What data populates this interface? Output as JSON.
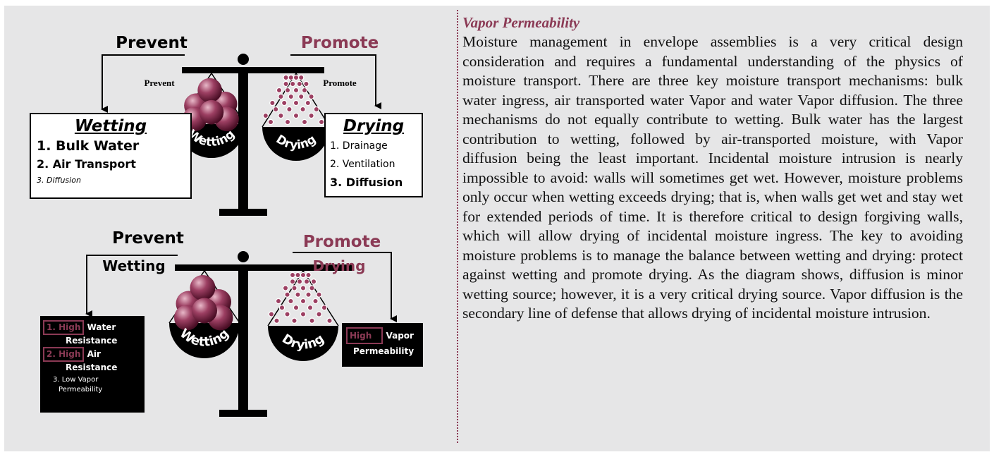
{
  "diagram": {
    "top": {
      "left_label": "Prevent",
      "right_label": "Promote",
      "pan_left_small": "Prevent",
      "pan_right_small": "Promote",
      "left_pan": "Wetting",
      "right_pan": "Drying",
      "left_box": {
        "title": "Wetting",
        "items": [
          "1. Bulk Water",
          "2. Air Transport",
          "3. Diffusion"
        ]
      },
      "right_box": {
        "title": "Drying",
        "items": [
          "1. Drainage",
          "2. Ventilation",
          "3. Diffusion"
        ]
      }
    },
    "bottom": {
      "left_label": "Prevent",
      "left_sub": "Wetting",
      "right_label": "Promote",
      "right_sub": "Drying",
      "left_pan": "Wetting",
      "right_pan": "Drying",
      "left_box": [
        {
          "tag": "1. High",
          "text": "Water",
          "text2": "Resistance"
        },
        {
          "tag": "2. High",
          "text": "Air",
          "text2": "Resistance"
        },
        {
          "text": "3. Low Vapor",
          "text2": "Permeability"
        }
      ],
      "right_box": {
        "tag": "High",
        "text": "Vapor",
        "text2": "Permeability"
      }
    }
  },
  "article": {
    "title": "Vapor Permeability",
    "body": "Moisture management in envelope assemblies is a very critical design consideration and requires a fundamental understanding of the physics of moisture transport. There are three key moisture transport mechanisms: bulk water ingress, air transported water Vapor and water Vapor diffusion. The three mechanisms do not equally contribute to wetting. Bulk water has the largest contribution to wetting, followed by air-transported moisture, with Vapor diffusion being the least important. Incidental moisture intrusion is nearly impossible to avoid: walls will sometimes get wet. However, moisture problems only occur when wetting exceeds drying; that is, when walls get wet and stay wet for extended periods of time. It is therefore critical to design forgiving walls, which will allow drying of incidental moisture ingress. The key to avoiding moisture problems is to manage the balance between wetting and drying: protect against wetting and promote drying. As the diagram shows, diffusion is minor wetting source; however, it is a very critical drying source. Vapor diffusion is the secondary line of defense that allows drying of incidental moisture intrusion."
  }
}
